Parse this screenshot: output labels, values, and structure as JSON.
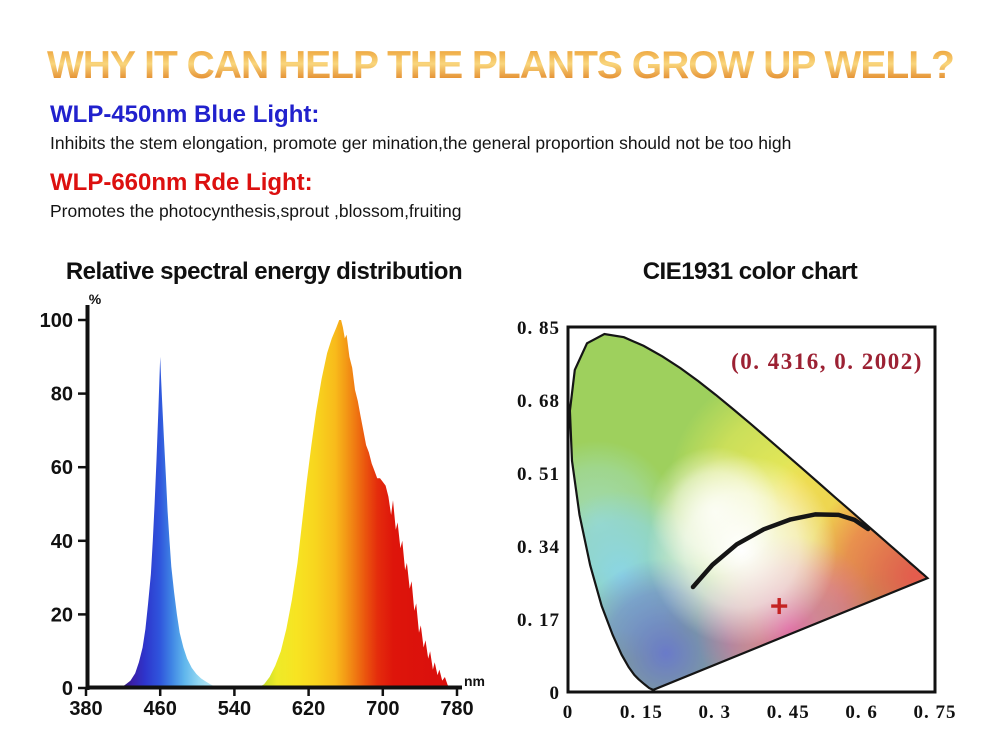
{
  "header": {
    "title": "WHY IT CAN HELP THE PLANTS GROW UP WELL?"
  },
  "sections": {
    "blue": {
      "heading": "WLP-450nm Blue Light:",
      "body": "Inhibits the stem elongation, promote ger mination,the general proportion should not be too high"
    },
    "red": {
      "heading": "WLP-660nm Rde Light:",
      "body": "Promotes the photocynthesis,sprout ,blossom,fruiting"
    }
  },
  "colors": {
    "title_gradient": [
      "#eda43c",
      "#f9d67c",
      "#df7c1e"
    ],
    "blue_heading": "#2121cd",
    "red_heading": "#dc100f",
    "axis": "#111111",
    "annotation": "#9c2133",
    "marker": "#c42222",
    "planckian_curve": "#151515"
  },
  "chart_data": [
    {
      "type": "area",
      "name": "spectral-energy-distribution",
      "title": "Relative spectral energy distribution",
      "xlabel": "nm",
      "ylabel": "%",
      "xlim": [
        380,
        780
      ],
      "ylim": [
        0,
        100
      ],
      "x_ticks": [
        380,
        460,
        540,
        620,
        700,
        780
      ],
      "y_ticks": [
        100,
        80,
        60,
        40,
        20,
        0
      ],
      "grid": false,
      "series": [
        {
          "name": "blue-led-450nm",
          "peak_nm": 460,
          "peak_pct": 90,
          "points": [
            [
              417,
              0
            ],
            [
              423,
              1
            ],
            [
              428,
              2
            ],
            [
              433,
              4
            ],
            [
              437,
              7
            ],
            [
              441,
              11
            ],
            [
              444,
              16
            ],
            [
              447,
              23
            ],
            [
              450,
              31
            ],
            [
              452,
              40
            ],
            [
              454,
              50
            ],
            [
              456,
              62
            ],
            [
              458,
              75
            ],
            [
              459,
              83
            ],
            [
              460,
              90
            ],
            [
              461,
              84
            ],
            [
              462,
              78
            ],
            [
              464,
              68
            ],
            [
              466,
              58
            ],
            [
              468,
              48
            ],
            [
              470,
              40
            ],
            [
              472,
              33
            ],
            [
              475,
              26
            ],
            [
              478,
              20
            ],
            [
              481,
              15
            ],
            [
              485,
              11
            ],
            [
              489,
              8
            ],
            [
              494,
              5.5
            ],
            [
              499,
              3.8
            ],
            [
              504,
              2.6
            ],
            [
              509,
              1.8
            ],
            [
              514,
              1
            ],
            [
              519,
              0.4
            ],
            [
              523,
              0
            ]
          ],
          "gradient": [
            [
              0,
              "#2a1464"
            ],
            [
              0.12,
              "#3a1fa8"
            ],
            [
              0.25,
              "#2e35cc"
            ],
            [
              0.4,
              "#2f55dc"
            ],
            [
              0.52,
              "#3f84e4"
            ],
            [
              0.65,
              "#5fb5ec"
            ],
            [
              0.8,
              "#93d8f2"
            ],
            [
              1,
              "#c8eef8"
            ]
          ]
        },
        {
          "name": "red-led-660nm",
          "peak_nm": 655,
          "peak_pct": 100,
          "points": [
            [
              565,
              0
            ],
            [
              572,
              1
            ],
            [
              578,
              3
            ],
            [
              584,
              6
            ],
            [
              590,
              10
            ],
            [
              596,
              16
            ],
            [
              602,
              24
            ],
            [
              608,
              34
            ],
            [
              613,
              45
            ],
            [
              618,
              56
            ],
            [
              623,
              66
            ],
            [
              628,
              75
            ],
            [
              634,
              84
            ],
            [
              640,
              91
            ],
            [
              645,
              95
            ],
            [
              650,
              98
            ],
            [
              653,
              100
            ],
            [
              655,
              100
            ],
            [
              657,
              98
            ],
            [
              659,
              95
            ],
            [
              661,
              96
            ],
            [
              664,
              90
            ],
            [
              667,
              87
            ],
            [
              670,
              81
            ],
            [
              673,
              78
            ],
            [
              676,
              74
            ],
            [
              679,
              70
            ],
            [
              682,
              66
            ],
            [
              685,
              64
            ],
            [
              688,
              61
            ],
            [
              691,
              59
            ],
            [
              694,
              57
            ],
            [
              697,
              57
            ],
            [
              700,
              56
            ],
            [
              703,
              55
            ],
            [
              706,
              52
            ],
            [
              709,
              47
            ],
            [
              711,
              51
            ],
            [
              714,
              43
            ],
            [
              716,
              45
            ],
            [
              719,
              38
            ],
            [
              721,
              40
            ],
            [
              724,
              32
            ],
            [
              726,
              34
            ],
            [
              729,
              27
            ],
            [
              731,
              29
            ],
            [
              734,
              21
            ],
            [
              736,
              23
            ],
            [
              739,
              15
            ],
            [
              741,
              17
            ],
            [
              744,
              11
            ],
            [
              746,
              13
            ],
            [
              749,
              8
            ],
            [
              751,
              10
            ],
            [
              754,
              5
            ],
            [
              756,
              7
            ],
            [
              759,
              3.5
            ],
            [
              761,
              5
            ],
            [
              764,
              2
            ],
            [
              767,
              3
            ],
            [
              770,
              0.8
            ],
            [
              774,
              0
            ]
          ],
          "gradient": [
            [
              0,
              "#a8cc2e"
            ],
            [
              0.04,
              "#cde02a"
            ],
            [
              0.1,
              "#eeea28"
            ],
            [
              0.2,
              "#f7e422"
            ],
            [
              0.3,
              "#f8d51e"
            ],
            [
              0.4,
              "#f8bb1b"
            ],
            [
              0.45,
              "#f49d16"
            ],
            [
              0.5,
              "#f07c12"
            ],
            [
              0.56,
              "#ea520e"
            ],
            [
              0.62,
              "#e42c0c"
            ],
            [
              0.7,
              "#de150b"
            ],
            [
              1,
              "#d90e0c"
            ]
          ]
        }
      ]
    },
    {
      "type": "scatter",
      "name": "cie1931-chromaticity",
      "title": "CIE1931 color chart",
      "annotation": "(0. 4316,  0. 2002)",
      "point": {
        "x": 0.4316,
        "y": 0.2002
      },
      "xlim": [
        0,
        0.75
      ],
      "ylim": [
        0,
        0.85
      ],
      "x_ticks": [
        "0",
        "0. 15",
        "0. 3",
        "0. 45",
        "0. 6",
        "0. 75"
      ],
      "y_ticks": [
        "0. 85",
        "0. 68",
        "0. 51",
        "0. 34",
        "0. 17",
        "0"
      ],
      "x_tick_values": [
        0,
        0.15,
        0.3,
        0.45,
        0.6,
        0.75
      ],
      "y_tick_values": [
        0.85,
        0.68,
        0.51,
        0.34,
        0.17,
        0
      ],
      "grid": false,
      "spectral_locus": [
        [
          0.1741,
          0.005
        ],
        [
          0.166,
          0.009
        ],
        [
          0.1566,
          0.0177
        ],
        [
          0.144,
          0.0297
        ],
        [
          0.1355,
          0.0399
        ],
        [
          0.1241,
          0.0578
        ],
        [
          0.1096,
          0.0868
        ],
        [
          0.0913,
          0.1327
        ],
        [
          0.0687,
          0.2007
        ],
        [
          0.0454,
          0.295
        ],
        [
          0.0235,
          0.4127
        ],
        [
          0.0082,
          0.5384
        ],
        [
          0.0039,
          0.6548
        ],
        [
          0.0139,
          0.7502
        ],
        [
          0.0389,
          0.812
        ],
        [
          0.0743,
          0.8338
        ],
        [
          0.1142,
          0.8262
        ],
        [
          0.1547,
          0.8059
        ],
        [
          0.1929,
          0.7816
        ],
        [
          0.2296,
          0.7543
        ],
        [
          0.2658,
          0.7243
        ],
        [
          0.3016,
          0.6923
        ],
        [
          0.3373,
          0.6589
        ],
        [
          0.3731,
          0.6245
        ],
        [
          0.4087,
          0.5896
        ],
        [
          0.4441,
          0.5547
        ],
        [
          0.4788,
          0.5202
        ],
        [
          0.5125,
          0.4866
        ],
        [
          0.5448,
          0.4544
        ],
        [
          0.5752,
          0.4242
        ],
        [
          0.6029,
          0.3965
        ],
        [
          0.627,
          0.3725
        ],
        [
          0.6482,
          0.3514
        ],
        [
          0.6658,
          0.334
        ],
        [
          0.6801,
          0.3197
        ],
        [
          0.6915,
          0.3083
        ],
        [
          0.7006,
          0.2993
        ],
        [
          0.7079,
          0.292
        ],
        [
          0.714,
          0.2859
        ],
        [
          0.719,
          0.2809
        ],
        [
          0.723,
          0.277
        ],
        [
          0.726,
          0.274
        ],
        [
          0.7347,
          0.2653
        ]
      ],
      "planckian_locus": [
        [
          0.2555,
          0.2445
        ],
        [
          0.295,
          0.296
        ],
        [
          0.345,
          0.344
        ],
        [
          0.4,
          0.379
        ],
        [
          0.455,
          0.402
        ],
        [
          0.505,
          0.4135
        ],
        [
          0.553,
          0.4125
        ],
        [
          0.585,
          0.401
        ],
        [
          0.6132,
          0.3795
        ]
      ],
      "color_field": {
        "base": "#8cc83e",
        "wash_opacity": 0.16,
        "blobs": [
          {
            "x": 0.06,
            "y": 0.4,
            "r": 80,
            "c": "#8fd8c8",
            "o": 0.75
          },
          {
            "x": 0.11,
            "y": 0.27,
            "r": 85,
            "c": "#72cdee",
            "o": 0.9
          },
          {
            "x": 0.2,
            "y": 0.09,
            "r": 95,
            "c": "#4a5cc6",
            "o": 0.95
          },
          {
            "x": 0.46,
            "y": 0.47,
            "r": 125,
            "c": "#f0e838",
            "o": 0.95
          },
          {
            "x": 0.57,
            "y": 0.4,
            "r": 85,
            "c": "#f4c62a",
            "o": 0.85
          },
          {
            "x": 0.71,
            "y": 0.27,
            "r": 110,
            "c": "#e5342a",
            "o": 0.95
          },
          {
            "x": 0.45,
            "y": 0.15,
            "r": 92,
            "c": "#e24a9e",
            "o": 0.9
          }
        ],
        "white_blobs": [
          {
            "x": 0.355,
            "y": 0.33,
            "r": 95,
            "o": 1
          },
          {
            "x": 0.3,
            "y": 0.42,
            "r": 65,
            "o": 0.8
          }
        ]
      }
    }
  ]
}
